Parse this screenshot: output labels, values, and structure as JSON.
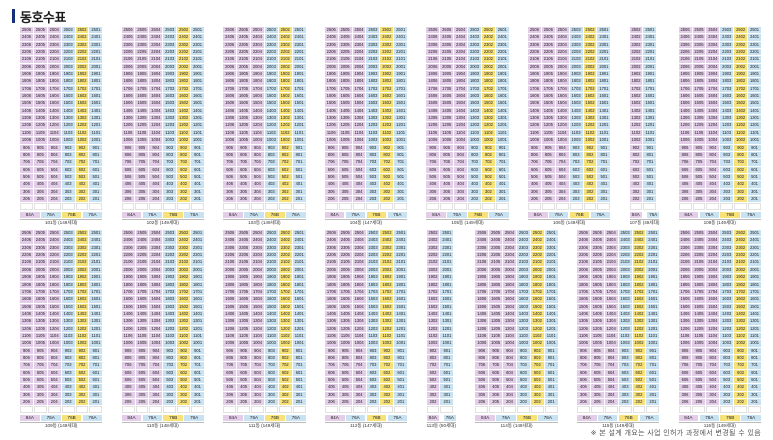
{
  "header": {
    "title": "동호수표"
  },
  "footnote": "※ 본 설계 개요는 사업 인허가 과정에서 변경될 수 있음",
  "colors": {
    "84A": "#e3cde8",
    "76A": "#c9e2f2",
    "76B": "#f7e27a"
  },
  "legend": [
    "84A",
    "76A",
    "76B",
    "76A"
  ],
  "rows": [
    [
      {
        "name": "101동 (149세대)",
        "top_floor": 25,
        "units": [
          "06",
          "05",
          "04",
          "03",
          "02",
          "01"
        ],
        "types": [
          "84A",
          "84A",
          "84A",
          "76A",
          "76B",
          "76A"
        ],
        "legend": [
          "84A",
          "76A",
          "76B",
          "76A"
        ]
      },
      {
        "name": "102동 (149세대)",
        "top_floor": 25,
        "units": [
          "06",
          "05",
          "04",
          "03",
          "02",
          "01"
        ],
        "types": [
          "84A",
          "84A",
          "84A",
          "76A",
          "76B",
          "76A"
        ],
        "legend": [
          "84A",
          "76A",
          "76B",
          "76A"
        ]
      },
      {
        "name": "103동 (149세대)",
        "top_floor": 25,
        "units": [
          "06",
          "05",
          "04",
          "03",
          "02",
          "01"
        ],
        "types": [
          "84A",
          "84A",
          "84A",
          "76A",
          "76B",
          "76A"
        ],
        "legend": [
          "84A",
          "76A",
          "76B",
          "76A"
        ]
      },
      {
        "name": "104동 (147세대)",
        "top_floor": 25,
        "units": [
          "06",
          "05",
          "04",
          "03",
          "02",
          "01"
        ],
        "types": [
          "84A",
          "84A",
          "84A",
          "76A",
          "76B",
          "76A"
        ],
        "legend": [
          "84A",
          "76A",
          "76B",
          "76A"
        ]
      },
      {
        "name": "105동 (149세대)",
        "top_floor": 25,
        "units": [
          "06",
          "05",
          "04",
          "03",
          "02",
          "01"
        ],
        "types": [
          "84A",
          "84A",
          "84A",
          "76A",
          "76B",
          "76A"
        ],
        "legend": [
          "84A",
          "76A",
          "76B",
          "76A"
        ]
      },
      {
        "name": "106동 (149세대)",
        "top_floor": 25,
        "units": [
          "06",
          "05",
          "04",
          "03",
          "02",
          "01"
        ],
        "types": [
          "84A",
          "84A",
          "84A",
          "76A",
          "76B",
          "76A"
        ],
        "legend": [
          "84A",
          "76A",
          "76B",
          "76A"
        ]
      },
      {
        "name": "107동 (48세대)",
        "top_floor": 25,
        "units": [
          "02",
          "01"
        ],
        "types": [
          "84A",
          "76A"
        ],
        "legend": [
          "84A",
          "76A"
        ]
      },
      {
        "name": "108동 (149세대)",
        "top_floor": 25,
        "units": [
          "06",
          "05",
          "04",
          "03",
          "02",
          "01"
        ],
        "types": [
          "84A",
          "84A",
          "84A",
          "76A",
          "76B",
          "76A"
        ],
        "legend": [
          "84A",
          "76A",
          "76B",
          "76A"
        ]
      }
    ],
    [
      {
        "name": "109동 (149세대)",
        "top_floor": 25,
        "units": [
          "06",
          "05",
          "04",
          "03",
          "02",
          "01"
        ],
        "types": [
          "84A",
          "84A",
          "84A",
          "76A",
          "76B",
          "76A"
        ],
        "legend": [
          "84A",
          "76A",
          "76B",
          "76A"
        ]
      },
      {
        "name": "110동 (148세대)",
        "top_floor": 25,
        "units": [
          "06",
          "05",
          "04",
          "03",
          "02",
          "01"
        ],
        "types": [
          "84A",
          "84A",
          "84A",
          "76A",
          "76B",
          "76A"
        ],
        "legend": [
          "84A",
          "76A",
          "76B",
          "76A"
        ]
      },
      {
        "name": "111동 (149세대)",
        "top_floor": 25,
        "units": [
          "06",
          "05",
          "04",
          "03",
          "02",
          "01"
        ],
        "types": [
          "84A",
          "84A",
          "84A",
          "76A",
          "76B",
          "76A"
        ],
        "legend": [
          "84A",
          "76A",
          "76B",
          "76A"
        ]
      },
      {
        "name": "112동 (147세대)",
        "top_floor": 25,
        "units": [
          "06",
          "05",
          "04",
          "03",
          "02",
          "01"
        ],
        "types": [
          "84A",
          "84A",
          "84A",
          "76A",
          "76B",
          "76A"
        ],
        "legend": [
          "84A",
          "76A",
          "76B",
          "76A"
        ]
      },
      {
        "name": "113동 (50세대)",
        "top_floor": 25,
        "units": [
          "02",
          "01"
        ],
        "types": [
          "84A",
          "76A"
        ],
        "legend": [
          "84A",
          "76A"
        ]
      },
      {
        "name": "114동 (149세대)",
        "top_floor": 25,
        "units": [
          "06",
          "05",
          "04",
          "03",
          "02",
          "01"
        ],
        "types": [
          "84A",
          "84A",
          "84A",
          "76A",
          "76B",
          "76A"
        ],
        "legend": [
          "84A",
          "76A",
          "76B",
          "76A"
        ]
      },
      {
        "name": "115동 (149세대)",
        "top_floor": 25,
        "units": [
          "06",
          "05",
          "04",
          "03",
          "02",
          "01"
        ],
        "types": [
          "84A",
          "84A",
          "84A",
          "76A",
          "76B",
          "76A"
        ],
        "legend": [
          "84A",
          "76A",
          "76B",
          "76A"
        ]
      },
      {
        "name": "116동 (149세대)",
        "top_floor": 25,
        "units": [
          "06",
          "05",
          "04",
          "03",
          "02",
          "01"
        ],
        "types": [
          "84A",
          "84A",
          "84A",
          "76A",
          "76B",
          "76A"
        ],
        "legend": [
          "84A",
          "76A",
          "76B",
          "76A"
        ]
      }
    ]
  ]
}
